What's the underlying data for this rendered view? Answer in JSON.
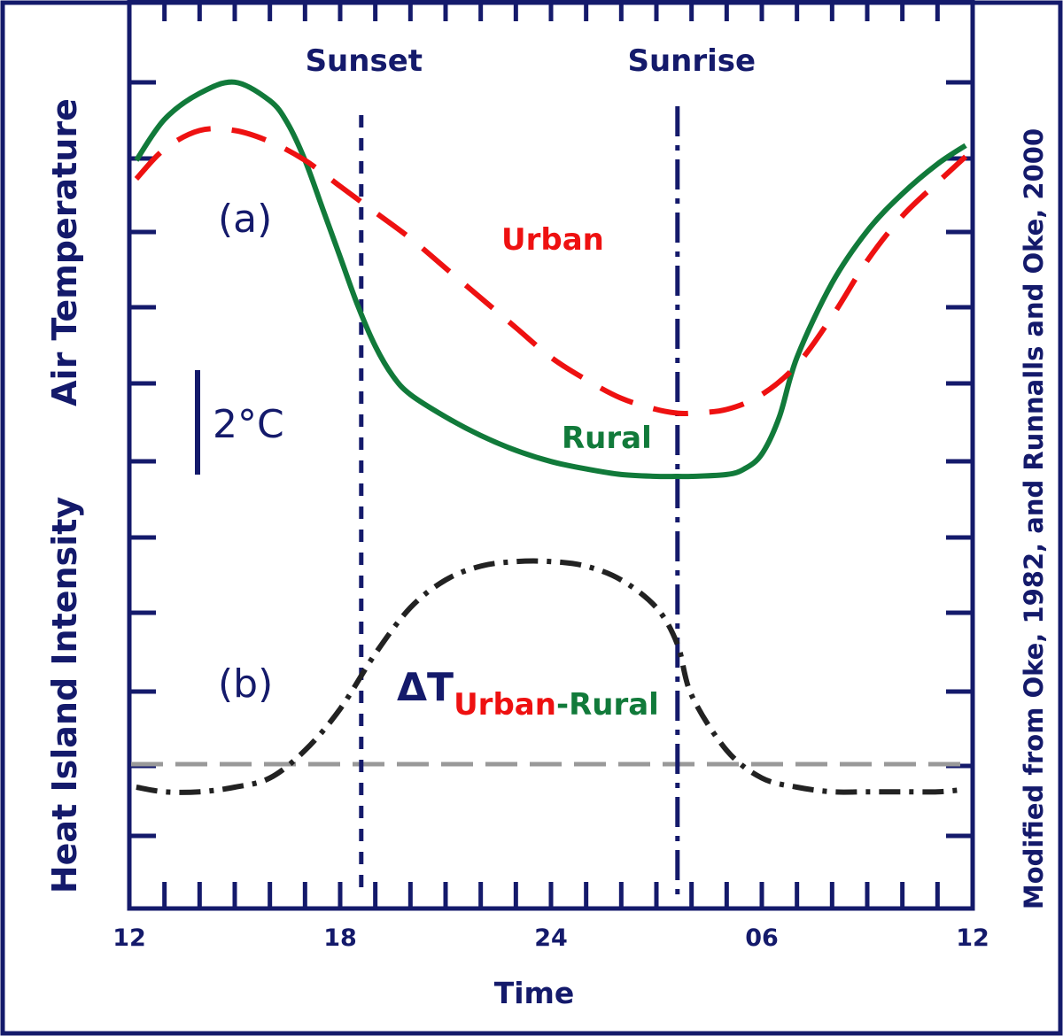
{
  "chart_data": {
    "type": "line",
    "xlabel": "Time",
    "x_ticks": [
      "12",
      "18",
      "24",
      "06",
      "12"
    ],
    "ylabels": [
      "Air Temperature",
      "Heat Island Intensity"
    ],
    "side_note": "Modified from Oke, 1982, and Runnalls and Oke, 2000",
    "events": [
      {
        "label": "Sunset",
        "hour": 18.6
      },
      {
        "label": "Sunrise",
        "hour": 27.6
      }
    ],
    "panels": [
      {
        "label": "(a)"
      },
      {
        "label": "(b)"
      }
    ],
    "scale_bar": {
      "label": "2°C",
      "degrees_c": 2
    },
    "delta_label": {
      "symbol": "ΔT",
      "part1": "Urban",
      "dash": "-",
      "part2": "Rural"
    },
    "colors": {
      "urban": "#ee1111",
      "rural": "#117a3a",
      "difference": "#222222",
      "zero_line": "#999999",
      "frame": "#141a6b"
    },
    "series": [
      {
        "name": "Urban",
        "panel": "a",
        "style": "dashed",
        "x": [
          12.2,
          13.0,
          14.0,
          15.0,
          16.0,
          17.0,
          18.0,
          19.0,
          20.0,
          21.0,
          22.0,
          23.0,
          24.0,
          25.0,
          26.0,
          27.0,
          27.6,
          28.0,
          29.0,
          30.0,
          31.0,
          32.0,
          33.0,
          34.0,
          35.0,
          35.8
        ],
        "y": [
          9.0,
          9.8,
          10.3,
          10.3,
          10.0,
          9.5,
          8.8,
          8.1,
          7.4,
          6.6,
          5.8,
          5.0,
          4.2,
          3.6,
          3.1,
          2.8,
          2.7,
          2.7,
          2.8,
          3.2,
          4.0,
          5.3,
          6.8,
          8.0,
          8.9,
          9.6
        ]
      },
      {
        "name": "Rural",
        "panel": "a",
        "style": "solid",
        "x": [
          12.2,
          13.0,
          14.0,
          15.0,
          16.0,
          16.5,
          17.0,
          17.5,
          18.0,
          18.5,
          19.0,
          19.5,
          20.0,
          21.0,
          22.0,
          23.0,
          24.0,
          25.0,
          26.0,
          27.0,
          27.6,
          28.0,
          29.0,
          29.5,
          30.0,
          30.5,
          31.0,
          32.0,
          33.0,
          34.0,
          35.0,
          35.8
        ],
        "y": [
          9.5,
          10.6,
          11.3,
          11.6,
          11.1,
          10.5,
          9.5,
          8.2,
          6.9,
          5.6,
          4.5,
          3.7,
          3.2,
          2.6,
          2.1,
          1.7,
          1.4,
          1.2,
          1.05,
          1.0,
          1.0,
          1.0,
          1.05,
          1.2,
          1.6,
          2.6,
          4.2,
          6.2,
          7.6,
          8.6,
          9.4,
          9.9
        ]
      },
      {
        "name": "ΔT Urban-Rural",
        "panel": "b",
        "style": "dash-dot",
        "x": [
          12.2,
          13.0,
          14.0,
          15.0,
          16.0,
          17.0,
          18.0,
          19.0,
          20.0,
          21.0,
          22.0,
          23.0,
          24.0,
          25.0,
          26.0,
          27.0,
          27.6,
          28.0,
          29.0,
          30.0,
          31.0,
          32.0,
          33.0,
          34.0,
          35.0,
          35.8
        ],
        "y": [
          -0.5,
          -0.6,
          -0.6,
          -0.5,
          -0.3,
          0.3,
          1.2,
          2.4,
          3.4,
          4.0,
          4.3,
          4.4,
          4.4,
          4.3,
          4.0,
          3.4,
          2.6,
          1.5,
          0.3,
          -0.3,
          -0.5,
          -0.6,
          -0.6,
          -0.6,
          -0.6,
          -0.55
        ]
      }
    ]
  }
}
